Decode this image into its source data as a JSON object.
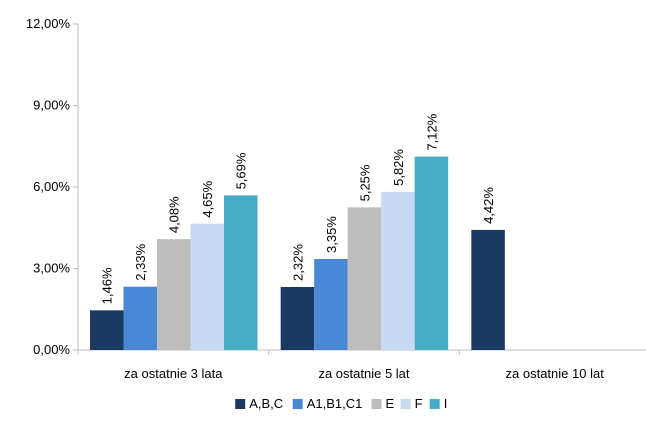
{
  "chart_data": {
    "type": "bar",
    "categories": [
      "za ostatnie 3 lata",
      "za ostatnie 5 lat",
      "za ostatnie 10 lat"
    ],
    "series": [
      {
        "name": "A,B,C",
        "color": "#1b3a61",
        "values": [
          1.46,
          2.32,
          4.42
        ],
        "labels": [
          "1,46%",
          "2,32%",
          "4,42%"
        ]
      },
      {
        "name": "A1,B1,C1",
        "color": "#4a88d6",
        "values": [
          2.33,
          3.35,
          null
        ],
        "labels": [
          "2,33%",
          "3,35%",
          ""
        ]
      },
      {
        "name": "E",
        "color": "#bdbdbd",
        "values": [
          4.08,
          5.25,
          null
        ],
        "labels": [
          "4,08%",
          "5,25%",
          ""
        ]
      },
      {
        "name": "F",
        "color": "#c9d9f1",
        "values": [
          4.65,
          5.82,
          null
        ],
        "labels": [
          "4,65%",
          "5,82%",
          ""
        ]
      },
      {
        "name": "I",
        "color": "#47adc4",
        "values": [
          5.69,
          7.12,
          null
        ],
        "labels": [
          "5,69%",
          "7,12%",
          ""
        ]
      }
    ],
    "ylim": [
      0,
      12
    ],
    "yticks": [
      0,
      3,
      6,
      9,
      12
    ],
    "ytick_labels": [
      "0,00%",
      "3,00%",
      "6,00%",
      "9,00%",
      "12,00%"
    ],
    "grid": false,
    "legend_position": "bottom",
    "xlabel": "",
    "ylabel": "",
    "title": ""
  }
}
